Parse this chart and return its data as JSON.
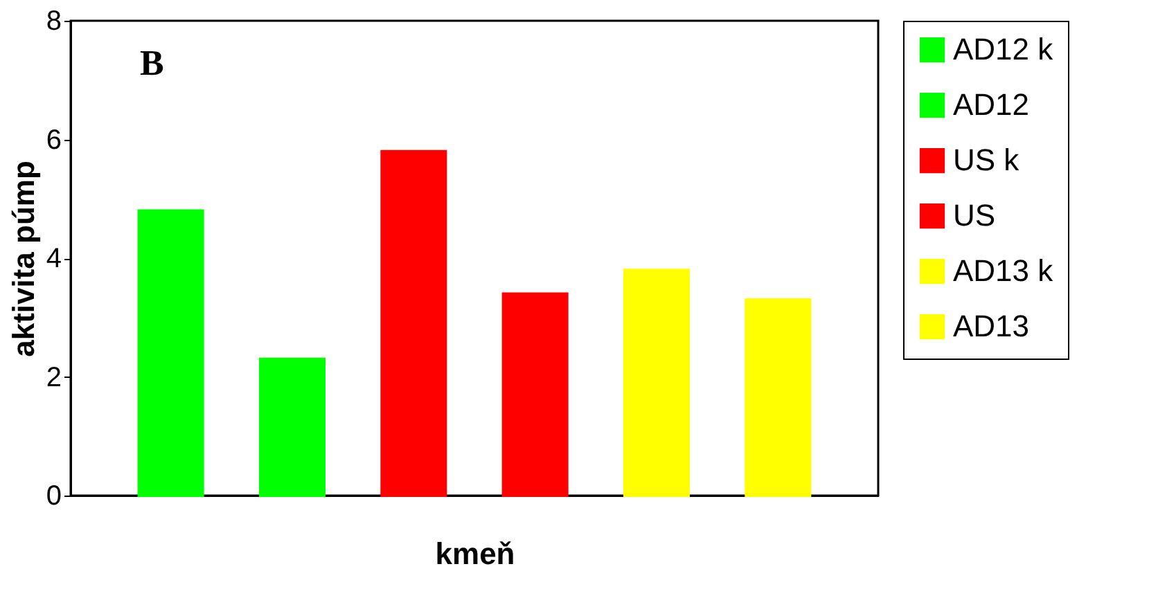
{
  "chart_data": {
    "type": "bar",
    "xlabel": "kmeň",
    "ylabel": "aktivita púmp",
    "annotations": [
      "B"
    ],
    "categories": [
      null,
      null,
      null,
      null,
      null,
      null
    ],
    "series": [
      {
        "name": "AD12 k",
        "color": "#00ff00",
        "values": [
          4.8,
          null,
          null,
          null,
          null,
          null
        ]
      },
      {
        "name": "AD12",
        "color": "#00ff00",
        "values": [
          null,
          2.3,
          null,
          null,
          null,
          null
        ]
      },
      {
        "name": "US  k",
        "color": "#ff0000",
        "values": [
          null,
          null,
          5.8,
          null,
          null,
          null
        ]
      },
      {
        "name": "US",
        "color": "#ff0000",
        "values": [
          null,
          null,
          null,
          3.4,
          null,
          null
        ]
      },
      {
        "name": "AD13 k",
        "color": "#ffff00",
        "values": [
          null,
          null,
          null,
          null,
          3.8,
          null
        ]
      },
      {
        "name": "AD13",
        "color": "#ffff00",
        "values": [
          null,
          null,
          null,
          null,
          null,
          3.3
        ]
      }
    ],
    "ylim": [
      0,
      8
    ],
    "yticks": [
      0,
      2,
      4,
      6,
      8
    ],
    "grid": false,
    "legend": "right"
  }
}
